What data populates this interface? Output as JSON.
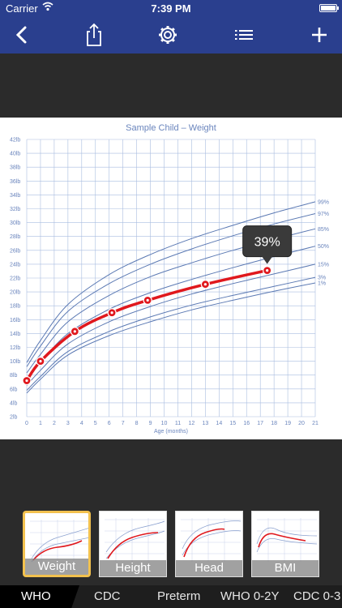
{
  "status": {
    "carrier": "Carrier",
    "time": "7:39 PM"
  },
  "nav": {
    "icons": [
      "back-chevron-icon",
      "share-icon",
      "gear-icon",
      "list-icon",
      "plus-icon"
    ]
  },
  "chart_data": {
    "type": "line",
    "title": "Sample Child – Weight",
    "xlabel": "Age (months)",
    "ylabel": "",
    "xlim": [
      0,
      21
    ],
    "ylim": [
      2,
      42
    ],
    "x_ticks": [
      "0",
      "1",
      "2",
      "3",
      "4",
      "5",
      "6",
      "7",
      "8",
      "9",
      "10",
      "11",
      "12",
      "13",
      "14",
      "15",
      "16",
      "17",
      "18",
      "19",
      "20",
      "21"
    ],
    "y_ticks": [
      "2lb",
      "4lb",
      "6lb",
      "8lb",
      "10lb",
      "12lb",
      "14lb",
      "16lb",
      "18lb",
      "20lb",
      "22lb",
      "24lb",
      "26lb",
      "28lb",
      "30lb",
      "32lb",
      "34lb",
      "36lb",
      "38lb",
      "40lb",
      "42lb"
    ],
    "percentile_labels": [
      "99%",
      "97%",
      "85%",
      "50%",
      "15%",
      "3%",
      "1%"
    ],
    "percentile_curves": [
      {
        "name": "99%",
        "x": [
          0,
          1,
          3,
          6,
          9,
          12,
          15,
          18,
          21
        ],
        "y": [
          9.8,
          13.0,
          18.2,
          22.5,
          25.4,
          27.7,
          29.6,
          31.4,
          33.0
        ]
      },
      {
        "name": "97%",
        "x": [
          0,
          1,
          3,
          6,
          9,
          12,
          15,
          18,
          21
        ],
        "y": [
          9.2,
          12.2,
          17.2,
          21.2,
          24.0,
          26.2,
          28.1,
          29.8,
          31.3
        ]
      },
      {
        "name": "85%",
        "x": [
          0,
          1,
          3,
          6,
          9,
          12,
          15,
          18,
          21
        ],
        "y": [
          8.3,
          11.0,
          15.7,
          19.5,
          22.2,
          24.2,
          26.0,
          27.6,
          29.1
        ]
      },
      {
        "name": "50%",
        "x": [
          0,
          1,
          3,
          6,
          9,
          12,
          15,
          18,
          21
        ],
        "y": [
          7.3,
          9.8,
          14.0,
          17.5,
          19.9,
          21.8,
          23.5,
          25.1,
          26.6
        ]
      },
      {
        "name": "15%",
        "x": [
          0,
          1,
          3,
          6,
          9,
          12,
          15,
          18,
          21
        ],
        "y": [
          6.5,
          8.7,
          12.5,
          15.7,
          17.9,
          19.7,
          21.2,
          22.6,
          24.0
        ]
      },
      {
        "name": "3%",
        "x": [
          0,
          1,
          3,
          6,
          9,
          12,
          15,
          18,
          21
        ],
        "y": [
          5.8,
          7.8,
          11.4,
          14.3,
          16.4,
          18.1,
          19.5,
          20.8,
          22.1
        ]
      },
      {
        "name": "1%",
        "x": [
          0,
          1,
          3,
          6,
          9,
          12,
          15,
          18,
          21
        ],
        "y": [
          5.4,
          7.4,
          10.9,
          13.7,
          15.7,
          17.4,
          18.8,
          20.1,
          21.3
        ]
      }
    ],
    "series": [
      {
        "name": "",
        "x": [
          0,
          1,
          3.5,
          6.2,
          8.8,
          13,
          17.5
        ],
        "y": [
          7.2,
          10.0,
          14.3,
          17.0,
          18.8,
          21.1,
          23.1
        ]
      }
    ],
    "callout": "39%",
    "colors": {
      "curve": "#5b79b3",
      "grid": "#a9bde0",
      "series": "#e0181d",
      "text": "#6a85bd"
    },
    "grid": true
  },
  "thumbnails": [
    {
      "label": "Weight",
      "active": true
    },
    {
      "label": "Height",
      "active": false
    },
    {
      "label": "Head",
      "active": false
    },
    {
      "label": "BMI",
      "active": false
    }
  ],
  "tabs": [
    {
      "label": "WHO",
      "active": true
    },
    {
      "label": "CDC",
      "active": false
    },
    {
      "label": "Preterm",
      "active": false
    },
    {
      "label": "WHO 0-2Y",
      "active": false
    },
    {
      "label": "CDC 0-3",
      "active": false
    }
  ]
}
